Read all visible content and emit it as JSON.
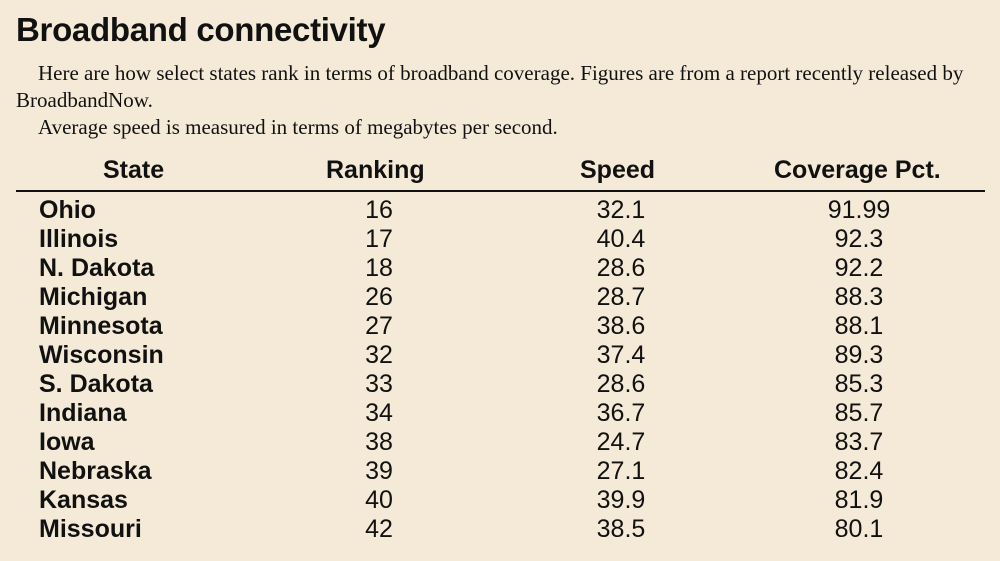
{
  "title": "Broadband connectivity",
  "intro": [
    "Here are how select states rank in terms of broadband coverage. Figures are from a report recently released by BroadbandNow.",
    "Average speed is measured in terms of megabytes per second."
  ],
  "chart_data": {
    "type": "table",
    "columns": [
      "State",
      "Ranking",
      "Speed",
      "Coverage Pct."
    ],
    "rows": [
      [
        "Ohio",
        "16",
        "32.1",
        "91.99"
      ],
      [
        "Illinois",
        "17",
        "40.4",
        "92.3"
      ],
      [
        "N. Dakota",
        "18",
        "28.6",
        "92.2"
      ],
      [
        "Michigan",
        "26",
        "28.7",
        "88.3"
      ],
      [
        "Minnesota",
        "27",
        "38.6",
        "88.1"
      ],
      [
        "Wisconsin",
        "32",
        "37.4",
        "89.3"
      ],
      [
        "S. Dakota",
        "33",
        "28.6",
        "85.3"
      ],
      [
        "Indiana",
        "34",
        "36.7",
        "85.7"
      ],
      [
        "Iowa",
        "38",
        "24.7",
        "83.7"
      ],
      [
        "Nebraska",
        "39",
        "27.1",
        "82.4"
      ],
      [
        "Kansas",
        "40",
        "39.9",
        "81.9"
      ],
      [
        "Missouri",
        "42",
        "38.5",
        "80.1"
      ]
    ]
  }
}
